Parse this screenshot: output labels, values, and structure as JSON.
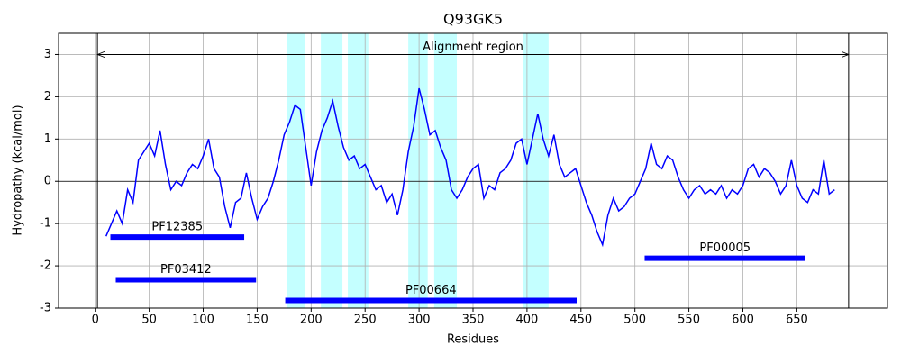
{
  "chart_data": {
    "type": "line",
    "title": "Q93GK5",
    "x_label": "Residues",
    "y_label": "Hydropathy (kcal/mol)",
    "xlim": [
      -34,
      734
    ],
    "ylim": [
      -3,
      3.5
    ],
    "xticks": [
      0,
      50,
      100,
      150,
      200,
      250,
      300,
      350,
      400,
      450,
      500,
      550,
      600,
      650
    ],
    "yticks": [
      -3,
      -2,
      -1,
      0,
      1,
      2,
      3
    ],
    "grid": true,
    "x": [
      10,
      15,
      20,
      25,
      30,
      35,
      40,
      45,
      50,
      55,
      60,
      65,
      70,
      75,
      80,
      85,
      90,
      95,
      100,
      105,
      110,
      115,
      120,
      125,
      130,
      135,
      140,
      145,
      150,
      155,
      160,
      165,
      170,
      175,
      180,
      185,
      190,
      195,
      200,
      205,
      210,
      215,
      220,
      225,
      230,
      235,
      240,
      245,
      250,
      255,
      260,
      265,
      270,
      275,
      280,
      285,
      290,
      295,
      300,
      305,
      310,
      315,
      320,
      325,
      330,
      335,
      340,
      345,
      350,
      355,
      360,
      365,
      370,
      375,
      380,
      385,
      390,
      395,
      400,
      405,
      410,
      415,
      420,
      425,
      430,
      435,
      440,
      445,
      450,
      455,
      460,
      465,
      470,
      475,
      480,
      485,
      490,
      495,
      500,
      505,
      510,
      515,
      520,
      525,
      530,
      535,
      540,
      545,
      550,
      555,
      560,
      565,
      570,
      575,
      580,
      585,
      590,
      595,
      600,
      605,
      610,
      615,
      620,
      625,
      630,
      635,
      640,
      645,
      650,
      655,
      660,
      665,
      670,
      675,
      680,
      685
    ],
    "series": [
      {
        "name": "Hydropathy",
        "color": "#0000ff",
        "values": [
          -1.3,
          -1.0,
          -0.7,
          -1.0,
          -0.2,
          -0.5,
          0.5,
          0.7,
          0.9,
          0.6,
          1.2,
          0.4,
          -0.2,
          0.0,
          -0.1,
          0.2,
          0.4,
          0.3,
          0.6,
          1.0,
          0.3,
          0.1,
          -0.6,
          -1.1,
          -0.5,
          -0.4,
          0.2,
          -0.4,
          -0.9,
          -0.6,
          -0.4,
          0.0,
          0.5,
          1.1,
          1.4,
          1.8,
          1.7,
          0.8,
          -0.1,
          0.7,
          1.2,
          1.5,
          1.9,
          1.3,
          0.8,
          0.5,
          0.6,
          0.3,
          0.4,
          0.1,
          -0.2,
          -0.1,
          -0.5,
          -0.3,
          -0.8,
          -0.2,
          0.7,
          1.3,
          2.2,
          1.7,
          1.1,
          1.2,
          0.8,
          0.5,
          -0.2,
          -0.4,
          -0.2,
          0.1,
          0.3,
          0.4,
          -0.4,
          -0.1,
          -0.2,
          0.2,
          0.3,
          0.5,
          0.9,
          1.0,
          0.4,
          1.0,
          1.6,
          1.0,
          0.6,
          1.1,
          0.4,
          0.1,
          0.2,
          0.3,
          -0.1,
          -0.5,
          -0.8,
          -1.2,
          -1.5,
          -0.8,
          -0.4,
          -0.7,
          -0.6,
          -0.4,
          -0.3,
          0.0,
          0.3,
          0.9,
          0.4,
          0.3,
          0.6,
          0.5,
          0.1,
          -0.2,
          -0.4,
          -0.2,
          -0.1,
          -0.3,
          -0.2,
          -0.3,
          -0.1,
          -0.4,
          -0.2,
          -0.3,
          -0.1,
          0.3,
          0.4,
          0.1,
          0.3,
          0.2,
          0.0,
          -0.3,
          -0.1,
          0.5,
          -0.1,
          -0.4,
          -0.5,
          -0.2,
          -0.3,
          0.5,
          -0.3,
          -0.2
        ]
      }
    ],
    "hline": 0,
    "vlines": [
      2,
      698
    ],
    "annotation": {
      "text": "Alignment region",
      "start": 2,
      "end": 698,
      "y": 3
    },
    "span_color": "#c4ffff",
    "spans": [
      {
        "start": 178,
        "end": 194
      },
      {
        "start": 209,
        "end": 229
      },
      {
        "start": 234,
        "end": 253
      },
      {
        "start": 290,
        "end": 308
      },
      {
        "start": 314,
        "end": 335
      },
      {
        "start": 396,
        "end": 420
      }
    ],
    "domain_color": "#0000ff",
    "domains": [
      {
        "name": "PF12385",
        "start": 14,
        "end": 138,
        "y": -1.32
      },
      {
        "name": "PF03412",
        "start": 19,
        "end": 149,
        "y": -2.33
      },
      {
        "name": "PF00664",
        "start": 176,
        "end": 446,
        "y": -2.82
      },
      {
        "name": "PF00005",
        "start": 509,
        "end": 658,
        "y": -1.82
      }
    ]
  }
}
